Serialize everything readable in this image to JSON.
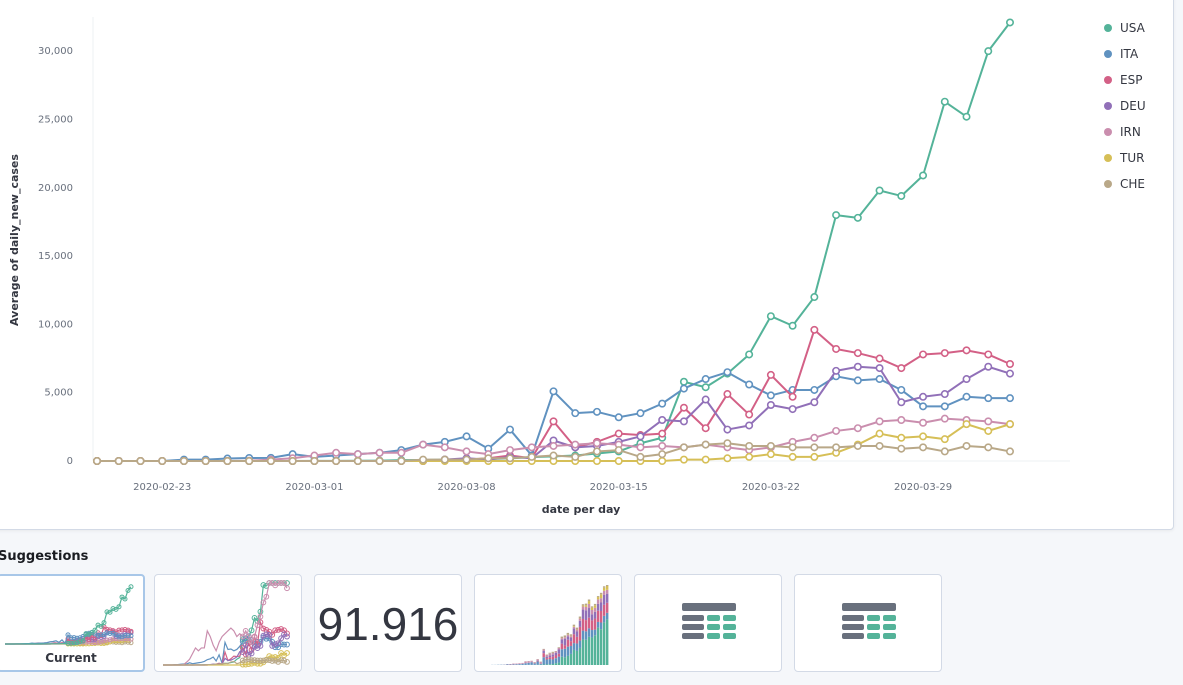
{
  "chart_data": {
    "type": "line",
    "xlabel": "date per day",
    "ylabel": "Average of daily_new_cases",
    "ylim": [
      0,
      32500
    ],
    "x_tick_labels": [
      "2020-02-23",
      "2020-03-01",
      "2020-03-08",
      "2020-03-15",
      "2020-03-22",
      "2020-03-29"
    ],
    "y_tick_labels": [
      "0",
      "5,000",
      "10,000",
      "15,000",
      "20,000",
      "25,000",
      "30,000"
    ],
    "x": [
      "2020-02-20",
      "2020-02-21",
      "2020-02-22",
      "2020-02-23",
      "2020-02-24",
      "2020-02-25",
      "2020-02-26",
      "2020-02-27",
      "2020-02-28",
      "2020-02-29",
      "2020-03-01",
      "2020-03-02",
      "2020-03-03",
      "2020-03-04",
      "2020-03-05",
      "2020-03-06",
      "2020-03-07",
      "2020-03-08",
      "2020-03-09",
      "2020-03-10",
      "2020-03-11",
      "2020-03-12",
      "2020-03-13",
      "2020-03-14",
      "2020-03-15",
      "2020-03-16",
      "2020-03-17",
      "2020-03-18",
      "2020-03-19",
      "2020-03-20",
      "2020-03-21",
      "2020-03-22",
      "2020-03-23",
      "2020-03-24",
      "2020-03-25",
      "2020-03-26",
      "2020-03-27",
      "2020-03-28",
      "2020-03-29",
      "2020-03-30",
      "2020-03-31",
      "2020-04-01",
      "2020-04-02"
    ],
    "legend_position": "top-right",
    "grid": false,
    "series": [
      {
        "name": "USA",
        "color": "#54b399",
        "values": [
          0,
          0,
          0,
          0,
          0,
          0,
          0,
          0,
          0,
          0,
          5,
          10,
          20,
          25,
          60,
          70,
          100,
          110,
          150,
          190,
          280,
          340,
          400,
          550,
          700,
          1300,
          1700,
          5800,
          5400,
          6400,
          7800,
          10600,
          9900,
          12000,
          18000,
          17800,
          19800,
          19400,
          20900,
          26300,
          25200,
          30000,
          32100
        ]
      },
      {
        "name": "ITA",
        "color": "#6092c0",
        "values": [
          0,
          0,
          0,
          0,
          100,
          100,
          180,
          220,
          230,
          500,
          300,
          400,
          500,
          600,
          800,
          1200,
          1400,
          1800,
          900,
          2300,
          400,
          5100,
          3500,
          3600,
          3200,
          3500,
          4200,
          5300,
          6000,
          6500,
          5600,
          4800,
          5200,
          5200,
          6200,
          5900,
          6000,
          5200,
          4000,
          4000,
          4700,
          4600,
          4600
        ]
      },
      {
        "name": "ESP",
        "color": "#d36086",
        "values": [
          0,
          0,
          0,
          0,
          0,
          0,
          0,
          0,
          0,
          0,
          0,
          0,
          0,
          0,
          0,
          0,
          100,
          100,
          200,
          400,
          200,
          2900,
          1000,
          1400,
          2000,
          1900,
          2000,
          3900,
          2400,
          4900,
          3400,
          6300,
          4700,
          9600,
          8200,
          7900,
          7500,
          6800,
          7800,
          7900,
          8100,
          7800,
          7100
        ]
      },
      {
        "name": "DEU",
        "color": "#9170b8",
        "values": [
          0,
          0,
          0,
          0,
          0,
          0,
          0,
          0,
          0,
          0,
          0,
          0,
          0,
          0,
          0,
          0,
          100,
          200,
          100,
          300,
          200,
          1500,
          1000,
          1100,
          1400,
          1800,
          3000,
          2900,
          4500,
          2300,
          2600,
          4100,
          3800,
          4300,
          6600,
          6900,
          6800,
          4300,
          4700,
          4900,
          6000,
          6900,
          6400
        ]
      },
      {
        "name": "IRN",
        "color": "#ca8eae",
        "values": [
          0,
          0,
          0,
          0,
          0,
          0,
          0,
          20,
          100,
          200,
          400,
          600,
          500,
          600,
          600,
          1200,
          1000,
          700,
          500,
          800,
          1000,
          1100,
          1200,
          1300,
          1200,
          1000,
          1100,
          1000,
          1200,
          1000,
          800,
          1000,
          1400,
          1700,
          2200,
          2400,
          2900,
          3000,
          2800,
          3100,
          3000,
          2900,
          2700
        ]
      },
      {
        "name": "TUR",
        "color": "#d6bf57",
        "values": [
          0,
          0,
          0,
          0,
          0,
          0,
          0,
          0,
          0,
          0,
          0,
          0,
          0,
          0,
          0,
          0,
          0,
          0,
          0,
          0,
          0,
          0,
          0,
          0,
          0,
          0,
          0,
          100,
          100,
          200,
          300,
          500,
          300,
          300,
          600,
          1200,
          2000,
          1700,
          1800,
          1600,
          2700,
          2200,
          2700
        ]
      },
      {
        "name": "CHE",
        "color": "#b9a888",
        "values": [
          0,
          0,
          0,
          0,
          0,
          0,
          0,
          0,
          0,
          0,
          0,
          0,
          0,
          0,
          0,
          100,
          100,
          100,
          200,
          200,
          300,
          400,
          300,
          700,
          800,
          300,
          500,
          1000,
          1200,
          1300,
          1100,
          1100,
          1000,
          1000,
          1000,
          1100,
          1100,
          900,
          1000,
          700,
          1100,
          1000,
          700
        ]
      }
    ]
  },
  "suggestions": {
    "title": "Suggestions",
    "current_label": "Current",
    "metric_value": "91.916"
  }
}
